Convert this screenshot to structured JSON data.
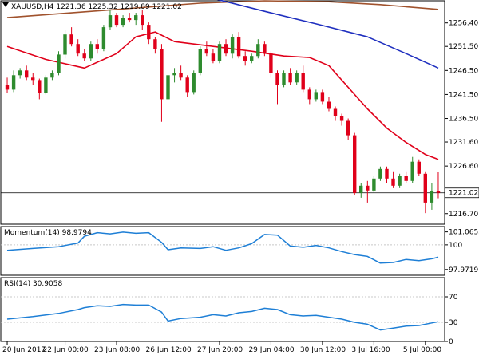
{
  "header": {
    "symbol_tf": "XAUUSD,H4",
    "ohlc": "1221.36 1225.32 1219.89 1221.02"
  },
  "colors": {
    "bull": "#2e8b2e",
    "bear": "#e0001a",
    "ma_red": "#e0001a",
    "ma_blue": "#1f2fbf",
    "ma_brown": "#a0522d",
    "indicator": "#1e7fd6",
    "grid": "#c8c8c8",
    "frame": "#000000"
  },
  "chart_data": [
    {
      "type": "candlestick",
      "title": "XAUUSD,H4",
      "ylim": [
        1214.5,
        1261
      ],
      "y_ticks": [
        "1256.40",
        "1251.50",
        "1246.50",
        "1241.50",
        "1236.50",
        "1231.60",
        "1226.60",
        "1216.70"
      ],
      "y_tick_values": [
        1256.4,
        1251.5,
        1246.5,
        1241.5,
        1236.5,
        1231.6,
        1226.6,
        1216.7
      ],
      "last_price": "1221.02",
      "last_price_value": 1221.02,
      "x_ticks": [
        "20 Jun 2017",
        "22 Jun 00:00",
        "23 Jun 08:00",
        "26 Jun 12:00",
        "27 Jun 20:00",
        "29 Jun 04:00",
        "30 Jun 12:00",
        "3 Jul 16:00",
        "5 Jul 00:00"
      ],
      "x_tick_index": [
        0,
        9,
        17,
        25,
        33,
        41,
        49,
        57,
        65
      ],
      "candles": [
        [
          1243.5,
          1245.0,
          1241.8,
          1242.5
        ],
        [
          1242.5,
          1246.5,
          1242.0,
          1245.5
        ],
        [
          1245.5,
          1247.0,
          1244.8,
          1246.5
        ],
        [
          1246.5,
          1247.5,
          1244.5,
          1245.0
        ],
        [
          1245.0,
          1246.0,
          1243.5,
          1244.5
        ],
        [
          1244.5,
          1244.8,
          1240.5,
          1241.8
        ],
        [
          1241.8,
          1245.5,
          1241.5,
          1245.0
        ],
        [
          1245.0,
          1246.5,
          1244.5,
          1246.0
        ],
        [
          1246.0,
          1250.5,
          1245.5,
          1249.8
        ],
        [
          1249.8,
          1255.0,
          1249.0,
          1254.0
        ],
        [
          1254.0,
          1255.5,
          1251.5,
          1252.0
        ],
        [
          1252.0,
          1253.0,
          1249.5,
          1250.0
        ],
        [
          1250.0,
          1251.0,
          1248.5,
          1249.0
        ],
        [
          1249.0,
          1252.5,
          1248.5,
          1252.0
        ],
        [
          1252.0,
          1253.0,
          1250.0,
          1251.0
        ],
        [
          1251.0,
          1256.0,
          1250.5,
          1255.5
        ],
        [
          1255.5,
          1259.0,
          1255.0,
          1258.0
        ],
        [
          1258.0,
          1258.5,
          1255.5,
          1256.0
        ],
        [
          1256.0,
          1258.0,
          1255.5,
          1257.5
        ],
        [
          1257.5,
          1258.5,
          1256.5,
          1257.0
        ],
        [
          1257.0,
          1258.5,
          1256.0,
          1258.0
        ],
        [
          1258.0,
          1259.0,
          1255.0,
          1256.0
        ],
        [
          1256.0,
          1256.5,
          1252.0,
          1253.0
        ],
        [
          1253.0,
          1253.5,
          1250.0,
          1251.0
        ],
        [
          1251.0,
          1252.0,
          1235.8,
          1240.5
        ],
        [
          1240.5,
          1246.0,
          1237.0,
          1245.5
        ],
        [
          1245.5,
          1247.0,
          1244.0,
          1246.0
        ],
        [
          1246.0,
          1247.5,
          1244.5,
          1245.0
        ],
        [
          1245.0,
          1245.5,
          1241.0,
          1242.0
        ],
        [
          1242.0,
          1246.5,
          1241.5,
          1246.0
        ],
        [
          1246.0,
          1251.5,
          1245.5,
          1251.0
        ],
        [
          1251.0,
          1252.5,
          1249.5,
          1250.0
        ],
        [
          1250.0,
          1251.0,
          1248.0,
          1248.5
        ],
        [
          1248.5,
          1252.5,
          1248.0,
          1252.0
        ],
        [
          1252.0,
          1253.0,
          1249.5,
          1250.0
        ],
        [
          1250.0,
          1254.0,
          1249.0,
          1253.5
        ],
        [
          1253.5,
          1254.5,
          1249.0,
          1249.5
        ],
        [
          1249.5,
          1250.5,
          1247.5,
          1248.5
        ],
        [
          1248.5,
          1250.0,
          1248.0,
          1249.5
        ],
        [
          1249.5,
          1253.0,
          1249.0,
          1252.0
        ],
        [
          1252.0,
          1252.5,
          1249.5,
          1250.0
        ],
        [
          1250.0,
          1250.5,
          1245.0,
          1246.0
        ],
        [
          1246.0,
          1246.5,
          1239.5,
          1243.5
        ],
        [
          1243.5,
          1246.5,
          1243.0,
          1246.0
        ],
        [
          1246.0,
          1247.0,
          1243.5,
          1244.0
        ],
        [
          1244.0,
          1246.5,
          1243.5,
          1246.0
        ],
        [
          1246.0,
          1247.5,
          1242.0,
          1242.5
        ],
        [
          1242.5,
          1243.0,
          1239.5,
          1240.5
        ],
        [
          1240.5,
          1242.5,
          1240.0,
          1242.0
        ],
        [
          1242.0,
          1242.5,
          1239.5,
          1240.0
        ],
        [
          1240.0,
          1241.0,
          1238.0,
          1238.5
        ],
        [
          1238.5,
          1239.0,
          1236.0,
          1237.0
        ],
        [
          1237.0,
          1237.5,
          1235.0,
          1236.0
        ],
        [
          1236.0,
          1236.5,
          1232.0,
          1233.0
        ],
        [
          1233.0,
          1233.5,
          1220.5,
          1221.0
        ],
        [
          1221.0,
          1223.0,
          1220.0,
          1222.5
        ],
        [
          1222.5,
          1223.5,
          1219.0,
          1221.5
        ],
        [
          1221.5,
          1224.5,
          1221.0,
          1224.0
        ],
        [
          1224.0,
          1226.5,
          1223.5,
          1226.0
        ],
        [
          1226.0,
          1226.5,
          1223.0,
          1224.0
        ],
        [
          1224.0,
          1225.5,
          1222.0,
          1222.5
        ],
        [
          1222.5,
          1225.0,
          1222.0,
          1224.5
        ],
        [
          1224.5,
          1225.5,
          1223.0,
          1223.5
        ],
        [
          1223.5,
          1228.5,
          1223.0,
          1227.5
        ],
        [
          1227.5,
          1228.0,
          1224.5,
          1225.0
        ],
        [
          1225.0,
          1225.5,
          1216.8,
          1219.0
        ],
        [
          1219.0,
          1223.0,
          1217.5,
          1221.36
        ],
        [
          1221.36,
          1225.32,
          1219.89,
          1221.02
        ]
      ],
      "ma_red": [
        [
          0,
          1251.5
        ],
        [
          6,
          1248.8
        ],
        [
          12,
          1247.0
        ],
        [
          17,
          1250.0
        ],
        [
          20,
          1253.5
        ],
        [
          23,
          1254.5
        ],
        [
          26,
          1252.5
        ],
        [
          32,
          1251.5
        ],
        [
          38,
          1250.5
        ],
        [
          43,
          1249.5
        ],
        [
          47,
          1249.2
        ],
        [
          50,
          1247.5
        ],
        [
          53,
          1243.0
        ],
        [
          56,
          1238.5
        ],
        [
          59,
          1234.5
        ],
        [
          62,
          1231.5
        ],
        [
          65,
          1229.0
        ],
        [
          67,
          1228.0
        ]
      ],
      "ma_blue": [
        [
          32,
          1261.5
        ],
        [
          40,
          1258.8
        ],
        [
          48,
          1256.2
        ],
        [
          56,
          1253.5
        ],
        [
          62,
          1250.0
        ],
        [
          67,
          1247.0
        ]
      ],
      "ma_brown": [
        [
          0,
          1257.5
        ],
        [
          10,
          1258.5
        ],
        [
          20,
          1259.5
        ],
        [
          30,
          1260.5
        ],
        [
          40,
          1261.0
        ],
        [
          50,
          1260.8
        ],
        [
          58,
          1260.2
        ],
        [
          67,
          1259.2
        ]
      ]
    },
    {
      "type": "line",
      "title": "Momentum(14) 98.9794",
      "ylim": [
        97.5,
        101.5
      ],
      "y_ticks": [
        "101.0655",
        "100",
        "97.9719"
      ],
      "y_tick_values": [
        101.0655,
        100,
        97.9719
      ],
      "ref_level": 100,
      "values": [
        [
          0,
          99.55
        ],
        [
          4,
          99.7
        ],
        [
          8,
          99.85
        ],
        [
          11,
          100.15
        ],
        [
          12,
          100.7
        ],
        [
          14,
          101.0
        ],
        [
          16,
          100.9
        ],
        [
          18,
          101.05
        ],
        [
          20,
          100.95
        ],
        [
          22,
          101.0
        ],
        [
          24,
          100.2
        ],
        [
          25,
          99.6
        ],
        [
          27,
          99.75
        ],
        [
          30,
          99.7
        ],
        [
          32,
          99.85
        ],
        [
          34,
          99.55
        ],
        [
          36,
          99.75
        ],
        [
          38,
          100.1
        ],
        [
          40,
          100.85
        ],
        [
          42,
          100.8
        ],
        [
          44,
          99.9
        ],
        [
          46,
          99.8
        ],
        [
          48,
          99.95
        ],
        [
          50,
          99.75
        ],
        [
          52,
          99.45
        ],
        [
          54,
          99.2
        ],
        [
          56,
          99.05
        ],
        [
          58,
          98.5
        ],
        [
          60,
          98.55
        ],
        [
          62,
          98.8
        ],
        [
          64,
          98.7
        ],
        [
          66,
          98.85
        ],
        [
          67,
          98.98
        ]
      ]
    },
    {
      "type": "line",
      "title": "RSI(14) 30.9058",
      "ylim": [
        0,
        100
      ],
      "y_ticks": [
        "70",
        "30",
        "0"
      ],
      "y_tick_values": [
        70,
        30,
        0
      ],
      "ref_levels": [
        70,
        30
      ],
      "values": [
        [
          0,
          35
        ],
        [
          4,
          39
        ],
        [
          8,
          44
        ],
        [
          11,
          50
        ],
        [
          12,
          53
        ],
        [
          14,
          56
        ],
        [
          16,
          55
        ],
        [
          18,
          58
        ],
        [
          20,
          57
        ],
        [
          22,
          57
        ],
        [
          24,
          46
        ],
        [
          25,
          32
        ],
        [
          27,
          36
        ],
        [
          30,
          38
        ],
        [
          32,
          42
        ],
        [
          34,
          40
        ],
        [
          36,
          45
        ],
        [
          38,
          47
        ],
        [
          40,
          52
        ],
        [
          42,
          50
        ],
        [
          44,
          42
        ],
        [
          46,
          40
        ],
        [
          48,
          41
        ],
        [
          50,
          38
        ],
        [
          52,
          35
        ],
        [
          54,
          30
        ],
        [
          56,
          27
        ],
        [
          58,
          18
        ],
        [
          60,
          21
        ],
        [
          62,
          24
        ],
        [
          64,
          25
        ],
        [
          66,
          29
        ],
        [
          67,
          30.9
        ]
      ]
    }
  ]
}
